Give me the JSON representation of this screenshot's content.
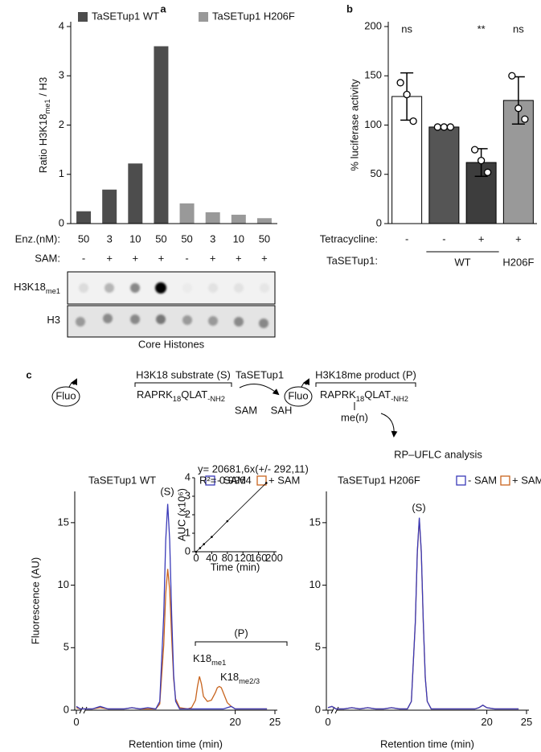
{
  "panels": [
    "a",
    "b",
    "c"
  ],
  "chart_data": [
    {
      "type": "bar",
      "ylabel": [
        "Ratio H3K18",
        "me1",
        " / H3"
      ],
      "xlabel": "Enz.(nM):",
      "categories": [
        "50",
        "3",
        "10",
        "50",
        "50",
        "3",
        "10",
        "50"
      ],
      "rows": [
        {
          "label": "SAM:",
          "values": [
            "-",
            "+",
            "+",
            "+",
            "-",
            "+",
            "+",
            "+"
          ]
        }
      ],
      "series": [
        {
          "name": "TaSETup1 WT",
          "color": "#4d4d4d",
          "values": [
            0.25,
            0.69,
            1.22,
            3.6,
            null,
            null,
            null,
            null
          ]
        },
        {
          "name": "TaSETup1 H206F",
          "color": "#999999",
          "values": [
            null,
            null,
            null,
            null,
            0.41,
            0.23,
            0.18,
            0.11
          ]
        }
      ],
      "ylim": [
        0,
        4
      ],
      "yticks": [
        0,
        1,
        2,
        3,
        4
      ],
      "legend": "top"
    },
    {
      "type": "bar",
      "ylabel": "% luciferase activity",
      "xlabel": "Tetracycline:",
      "categories": [
        "-",
        "-",
        "+",
        "+"
      ],
      "group_label": "TaSETup1:",
      "groups": [
        "WT",
        "H206F"
      ],
      "values": [
        129,
        98,
        62,
        125
      ],
      "errors": [
        24,
        1,
        14,
        24
      ],
      "points": [
        [
          143,
          131,
          104
        ],
        [
          98,
          98,
          98
        ],
        [
          75,
          64,
          52
        ],
        [
          150,
          117,
          106
        ]
      ],
      "colors": [
        "#ffffff",
        "#555555",
        "#3d3d3d",
        "#999999"
      ],
      "annotations": [
        "ns",
        null,
        "**",
        "ns"
      ],
      "ylim": [
        0,
        200
      ],
      "yticks": [
        0,
        50,
        100,
        150,
        200
      ]
    },
    {
      "type": "line",
      "title": "TaSETup1 WT",
      "xlabel": "Retention time (min)",
      "ylabel": "Fluorescence (AU)",
      "x": [
        0,
        0.5,
        1,
        2,
        3,
        4,
        5,
        6,
        7,
        8,
        9,
        10,
        10.5,
        11,
        11.25,
        11.5,
        11.75,
        12,
        12.25,
        12.5,
        13,
        14,
        14.5,
        15,
        15.25,
        15.5,
        15.75,
        16,
        16.5,
        17,
        17.5,
        17.75,
        18,
        18.25,
        18.5,
        19,
        19.5,
        20,
        21,
        22,
        23,
        24
      ],
      "series": [
        {
          "name": "- SAM",
          "color": "#3a3ab8",
          "values": [
            0.3,
            0.1,
            0.1,
            0.1,
            0.3,
            0.1,
            0.1,
            0.1,
            0.2,
            0.1,
            0.2,
            0.1,
            0.7,
            7.6,
            13.6,
            16.5,
            13.6,
            7.6,
            2.8,
            0.7,
            0.1,
            0.1,
            0.1,
            0.1,
            0.1,
            0.1,
            0.1,
            0.1,
            0.1,
            0.1,
            0.1,
            0.1,
            0.1,
            0.1,
            0.1,
            0.2,
            0.3,
            0.1,
            0.1,
            0.1,
            0.1,
            0.1
          ]
        },
        {
          "name": "+ SAM",
          "color": "#c8641e",
          "values": [
            0.2,
            0.1,
            0.1,
            0.1,
            0.2,
            0.1,
            0.1,
            0.1,
            0.2,
            0.1,
            0.1,
            0.1,
            0.5,
            5.2,
            9.3,
            11.3,
            9.6,
            5.8,
            2.5,
            0.9,
            0.2,
            0.1,
            0.2,
            0.8,
            1.9,
            2.7,
            2.1,
            1.1,
            0.7,
            0.8,
            1.4,
            1.8,
            1.9,
            1.8,
            1.4,
            0.6,
            0.3,
            0.1,
            0.1,
            0.1,
            0.1,
            0.1
          ]
        }
      ],
      "annotations": [
        "(S)",
        "(P)",
        [
          "K18",
          "me1"
        ],
        [
          "K18",
          "me2/3"
        ]
      ],
      "xlim": [
        0,
        25
      ],
      "xticks": [
        0,
        20,
        25
      ],
      "ylim": [
        0,
        17.5
      ],
      "yticks": [
        0,
        5,
        10,
        15
      ]
    },
    {
      "type": "line",
      "title": "TaSETup1 H206F",
      "xlabel": "Retention time (min)",
      "x": [
        0,
        0.5,
        1,
        2,
        3,
        4,
        5,
        6,
        7,
        8,
        9,
        10,
        10.5,
        11,
        11.25,
        11.5,
        11.75,
        12,
        12.25,
        12.5,
        13,
        14,
        14.5,
        15,
        15.25,
        15.5,
        15.75,
        16,
        16.5,
        17,
        17.5,
        17.75,
        18,
        18.25,
        18.5,
        19,
        19.5,
        20,
        21,
        22,
        23,
        24
      ],
      "series": [
        {
          "name": "- SAM",
          "color": "#3a3ab8",
          "values": [
            0.2,
            0.3,
            0.1,
            0.1,
            0.2,
            0.1,
            0.2,
            0.1,
            0.1,
            0.2,
            0.1,
            0.1,
            0.7,
            7.1,
            12.7,
            15.4,
            12.7,
            7.1,
            2.6,
            0.7,
            0.1,
            0.1,
            0.1,
            0.1,
            0.1,
            0.1,
            0.1,
            0.1,
            0.1,
            0.1,
            0.1,
            0.1,
            0.1,
            0.1,
            0.1,
            0.2,
            0.4,
            0.2,
            0.1,
            0.1,
            0.1,
            0.1
          ]
        },
        {
          "name": "+ SAM",
          "color": "#c8641e",
          "values": [
            0.2,
            0.3,
            0.1,
            0.1,
            0.2,
            0.1,
            0.2,
            0.1,
            0.1,
            0.2,
            0.1,
            0.1,
            0.7,
            7.0,
            12.6,
            15.3,
            12.6,
            7.0,
            2.6,
            0.7,
            0.1,
            0.1,
            0.1,
            0.1,
            0.1,
            0.1,
            0.1,
            0.1,
            0.1,
            0.1,
            0.1,
            0.1,
            0.1,
            0.1,
            0.1,
            0.2,
            0.4,
            0.2,
            0.1,
            0.1,
            0.1,
            0.1
          ]
        }
      ],
      "annotations": [
        "(S)"
      ],
      "xlim": [
        0,
        25
      ],
      "xticks": [
        0,
        20,
        25
      ],
      "ylim": [
        0,
        17.5
      ],
      "yticks": [
        0,
        5,
        10,
        15
      ]
    },
    {
      "type": "line",
      "markers": true,
      "xlabel": "Time (min)",
      "ylabel": "AUC (x10⁶)",
      "x": [
        0,
        10,
        20,
        40,
        80,
        180
      ],
      "series": [
        {
          "color": "#000000",
          "values": [
            0,
            0.2,
            0.41,
            0.8,
            1.65,
            3.72
          ]
        }
      ],
      "annotations": [
        "y= 20681,6x(+/- 292,11)",
        "R²= 0.9964"
      ],
      "xlim": [
        0,
        200
      ],
      "xticks": [
        0,
        40,
        80,
        120,
        160,
        200
      ],
      "ylim": [
        0,
        4
      ],
      "yticks": [
        0,
        1,
        2,
        3,
        4
      ]
    }
  ],
  "blot": {
    "rows": [
      [
        "H3K18",
        "me1"
      ],
      [
        "H3"
      ]
    ],
    "caption": "Core Histones"
  },
  "scheme": {
    "substrate": {
      "fluo": "Fluo",
      "title": "H3K18 substrate (S)",
      "sequence": [
        "RAPRK",
        "18",
        "QLAT",
        "-NH2"
      ]
    },
    "enzyme": "TaSETup1",
    "cofactor_in": "SAM",
    "cofactor_out": "SAH",
    "product": {
      "fluo": "Fluo",
      "title": "H3K18me product (P)",
      "sequence": [
        "RAPRK",
        "18",
        "QLAT",
        "-NH2"
      ],
      "modification": "me(n)"
    },
    "analysis": "RP–UFLC analysis"
  }
}
